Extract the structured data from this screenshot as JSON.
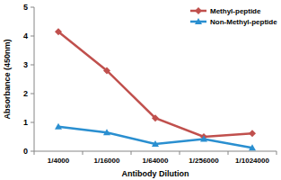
{
  "chart_data": {
    "type": "line",
    "x_label": "Antibody Dilution",
    "y_label": "Absorbance (450nm)",
    "categories": [
      "1/4000",
      "1/16000",
      "1/64000",
      "1/256000",
      "1/1024000"
    ],
    "series": [
      {
        "name": "Methyl-peptide",
        "color": "#c0504d",
        "marker": "diamond",
        "values": [
          4.15,
          2.8,
          1.15,
          0.5,
          0.62
        ]
      },
      {
        "name": "Non-Methyl-peptide",
        "color": "#2a8fd0",
        "marker": "triangle",
        "values": [
          0.85,
          0.65,
          0.25,
          0.42,
          0.12
        ]
      }
    ],
    "ylim": [
      0,
      5
    ],
    "yticks": [
      0,
      1,
      2,
      3,
      4,
      5
    ],
    "grid": false,
    "legend": "upper right"
  }
}
